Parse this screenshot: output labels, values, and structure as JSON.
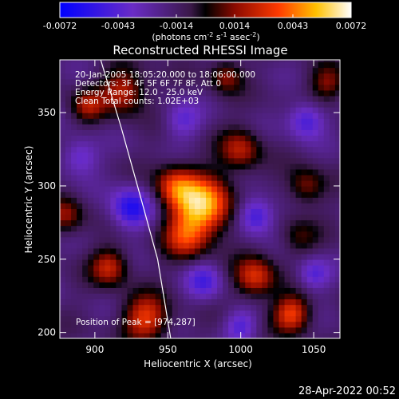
{
  "chart_data": {
    "type": "heatmap",
    "title": "Reconstructed RHESSI Image",
    "xlabel": "Heliocentric X (arcsec)",
    "ylabel": "Heliocentric Y (arcsec)",
    "xlim": [
      876,
      1068
    ],
    "ylim": [
      196,
      386
    ],
    "x_ticks": [
      900,
      950,
      1000,
      1050
    ],
    "y_ticks": [
      200,
      250,
      300,
      350
    ],
    "colorbar": {
      "ticks": [
        "-0.0072",
        "-0.0043",
        "-0.0014",
        "0.0014",
        "0.0043",
        "0.0072"
      ],
      "range": [
        -0.0072,
        0.0072
      ],
      "unit_label_parts": [
        "(photons cm",
        "-2",
        " s",
        "-1",
        " asec",
        "-2",
        ")"
      ]
    },
    "annotations": [
      "20-Jan-2005 18:05:20.000 to 18:06:00.000",
      "Detectors: 3F 4F 5F 6F 7F 8F, Att 0",
      "Energy Range: 12.0 - 25.0 keV",
      "Clean    Total counts: 1.02E+03"
    ],
    "peak_label": "Position of Peak = [974,287]",
    "peak_position": [
      974,
      287
    ],
    "limb_curve": [
      [
        904,
        386
      ],
      [
        918,
        340
      ],
      [
        932,
        290
      ],
      [
        943,
        250
      ],
      [
        952,
        196
      ]
    ],
    "sources": [
      {
        "x": 974,
        "y": 287,
        "value": 0.0072,
        "sigma": 14
      },
      {
        "x": 955,
        "y": 300,
        "value": 0.0042,
        "sigma": 10
      },
      {
        "x": 962,
        "y": 265,
        "value": 0.0038,
        "sigma": 11
      },
      {
        "x": 1010,
        "y": 238,
        "value": 0.0045,
        "sigma": 10
      },
      {
        "x": 1035,
        "y": 213,
        "value": 0.005,
        "sigma": 9
      },
      {
        "x": 935,
        "y": 210,
        "value": 0.0048,
        "sigma": 11
      },
      {
        "x": 910,
        "y": 245,
        "value": 0.004,
        "sigma": 9
      },
      {
        "x": 920,
        "y": 365,
        "value": 0.004,
        "sigma": 11
      },
      {
        "x": 895,
        "y": 355,
        "value": 0.0032,
        "sigma": 8
      },
      {
        "x": 1000,
        "y": 325,
        "value": 0.0036,
        "sigma": 10
      },
      {
        "x": 1045,
        "y": 300,
        "value": 0.003,
        "sigma": 9
      },
      {
        "x": 1060,
        "y": 370,
        "value": 0.003,
        "sigma": 9
      },
      {
        "x": 880,
        "y": 280,
        "value": 0.003,
        "sigma": 9
      },
      {
        "x": 990,
        "y": 375,
        "value": 0.003,
        "sigma": 8
      },
      {
        "x": 1040,
        "y": 265,
        "value": 0.002,
        "sigma": 9
      },
      {
        "x": 925,
        "y": 285,
        "value": -0.0045,
        "sigma": 10
      },
      {
        "x": 1010,
        "y": 280,
        "value": -0.004,
        "sigma": 9
      },
      {
        "x": 1045,
        "y": 345,
        "value": -0.0035,
        "sigma": 9
      },
      {
        "x": 975,
        "y": 235,
        "value": -0.003,
        "sigma": 9
      },
      {
        "x": 1050,
        "y": 240,
        "value": -0.003,
        "sigma": 8
      },
      {
        "x": 890,
        "y": 320,
        "value": -0.0028,
        "sigma": 9
      },
      {
        "x": 960,
        "y": 345,
        "value": -0.0025,
        "sigma": 9
      },
      {
        "x": 1000,
        "y": 205,
        "value": -0.0028,
        "sigma": 8
      }
    ]
  },
  "footer": {
    "timestamp": "28-Apr-2022 00:52"
  }
}
